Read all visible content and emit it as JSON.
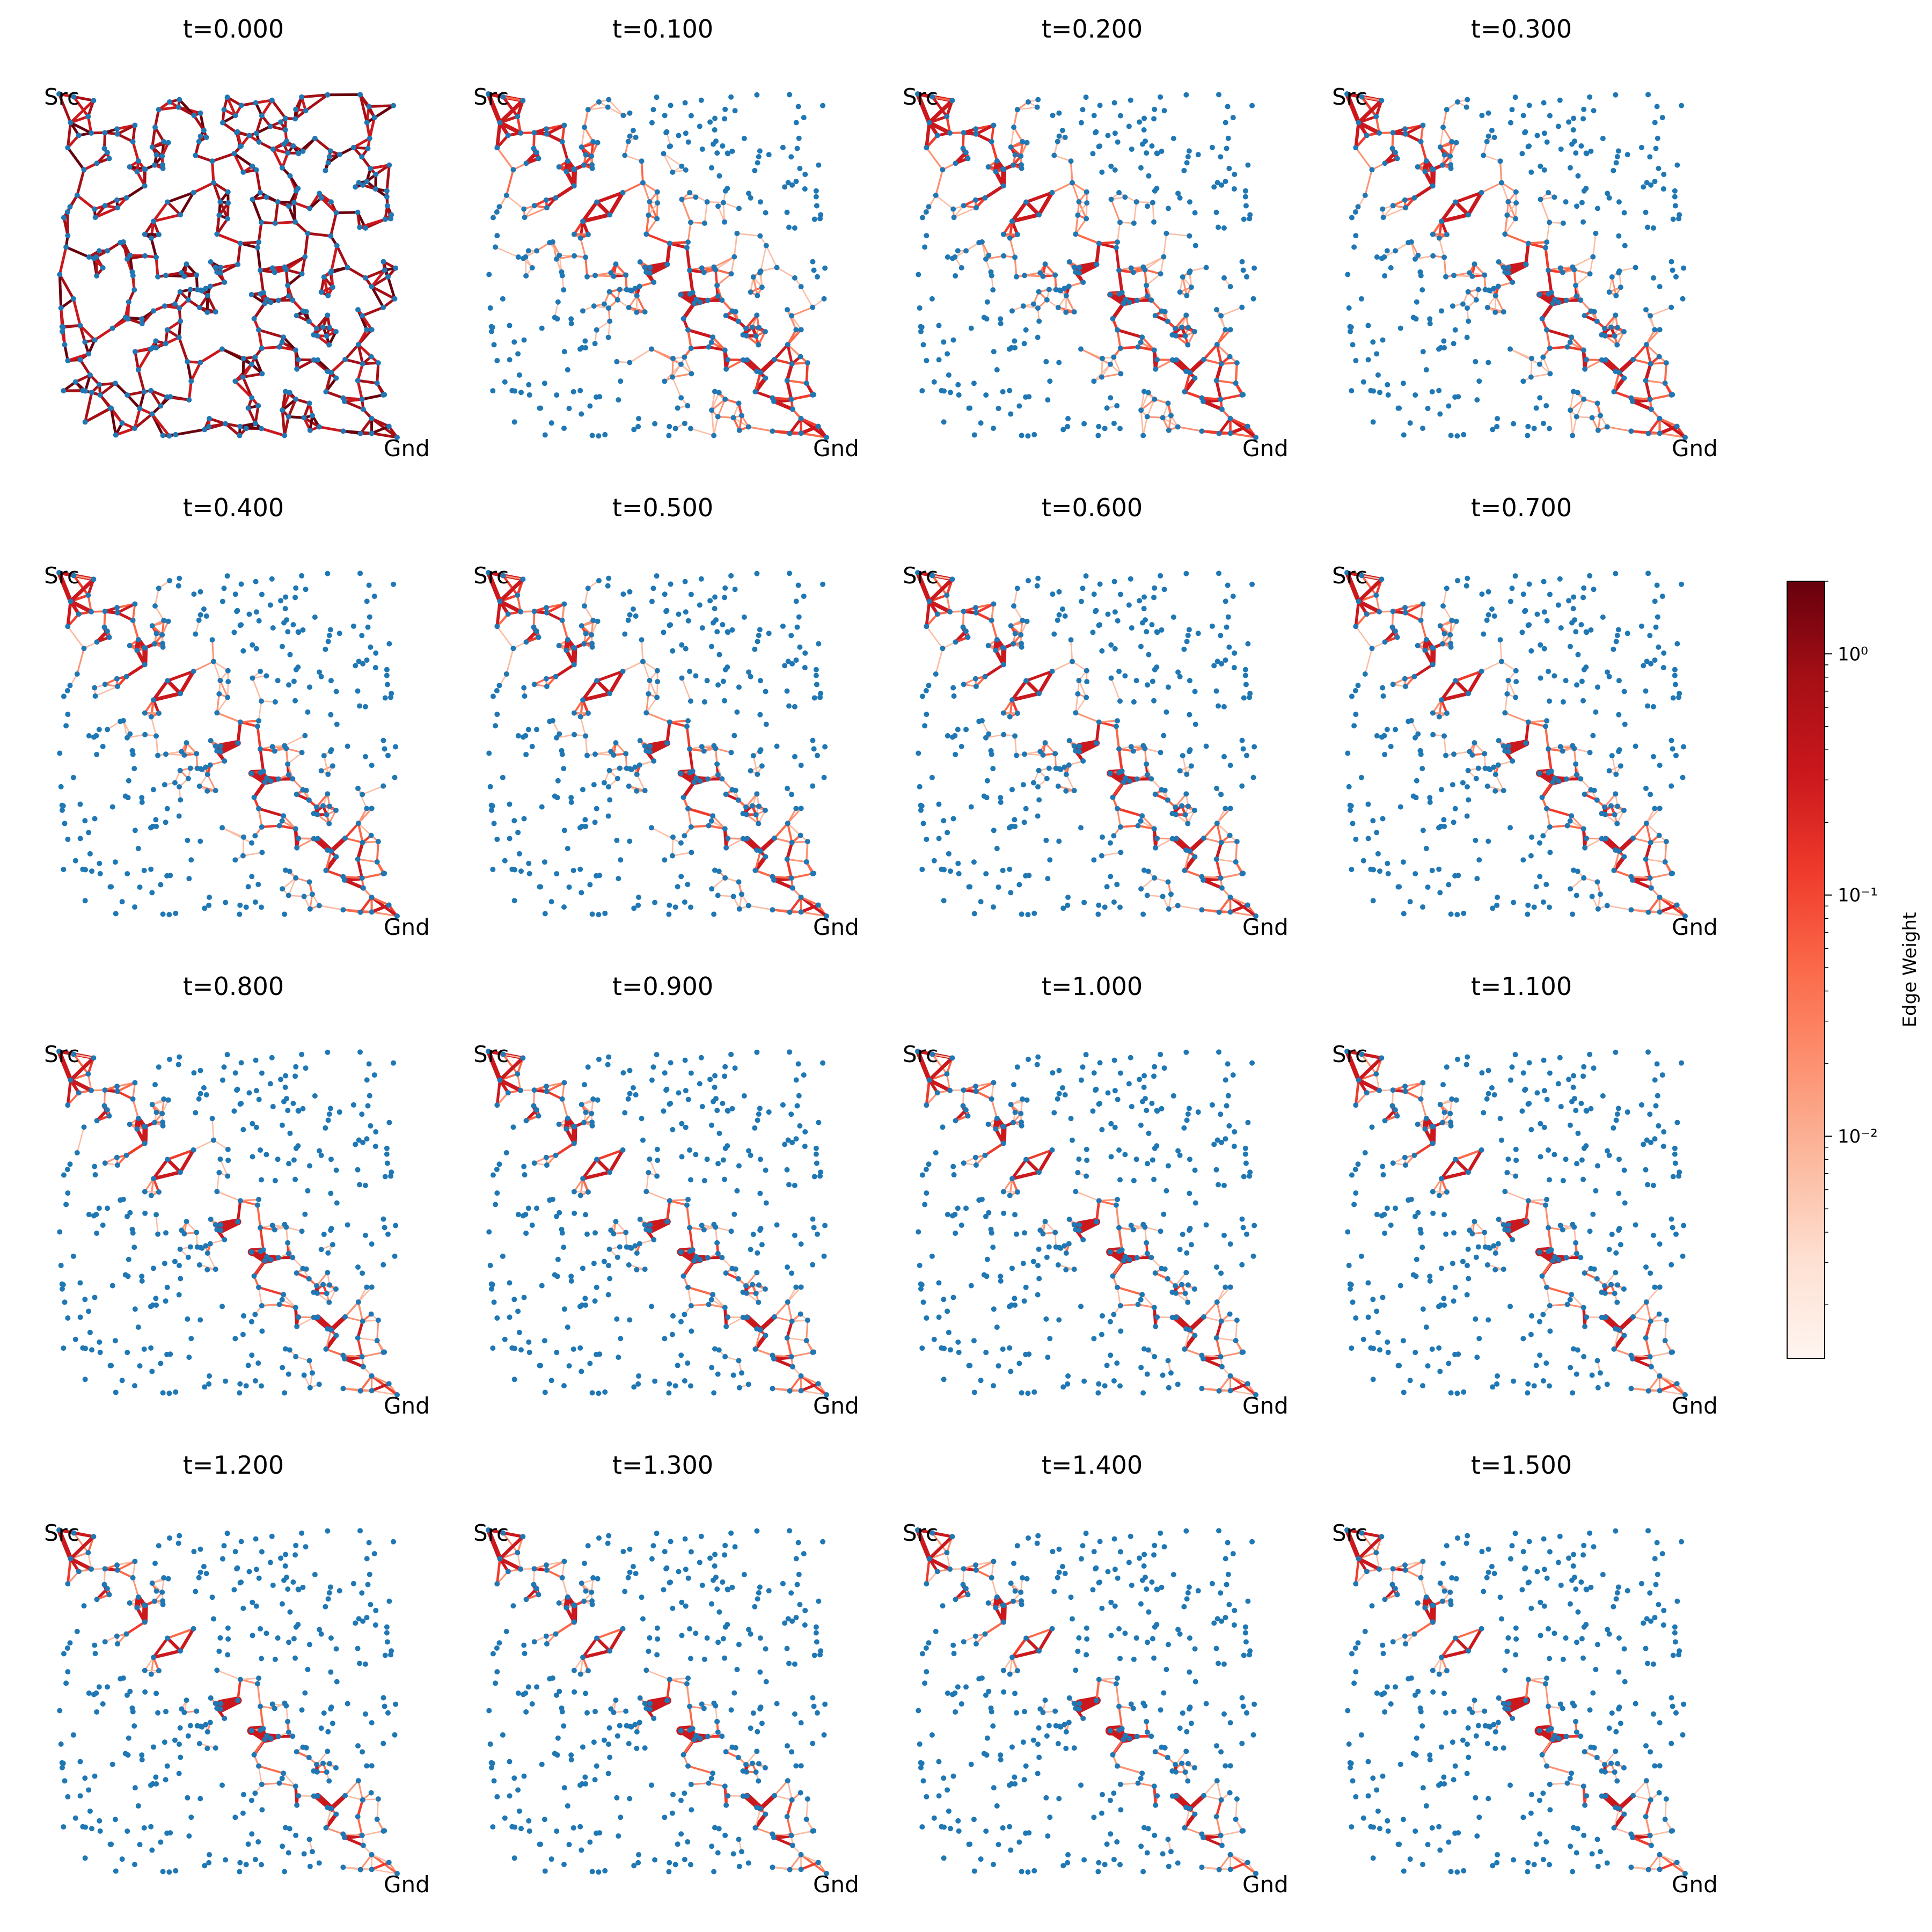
{
  "chart_data": {
    "type": "network-graph-grid",
    "panel_titles": [
      "t=0.000",
      "t=0.100",
      "t=0.200",
      "t=0.300",
      "t=0.400",
      "t=0.500",
      "t=0.600",
      "t=0.700",
      "t=0.800",
      "t=0.900",
      "t=1.000",
      "t=1.100",
      "t=1.200",
      "t=1.300",
      "t=1.400",
      "t=1.500"
    ],
    "node_labels": {
      "source": "Src",
      "ground": "Gnd"
    },
    "colorbar": {
      "label": "Edge Weight",
      "scale": "log",
      "colormap": "Reds",
      "range": [
        0.0012,
        2.0
      ],
      "ticks": [
        {
          "value": 1,
          "label": "10⁰"
        },
        {
          "value": 0.1,
          "label": "10⁻¹"
        },
        {
          "value": 0.01,
          "label": "10⁻²"
        }
      ]
    },
    "node_color": "#1f77b4",
    "edge_color_high": "#67000d",
    "edge_color_low": "#fff5f0"
  }
}
